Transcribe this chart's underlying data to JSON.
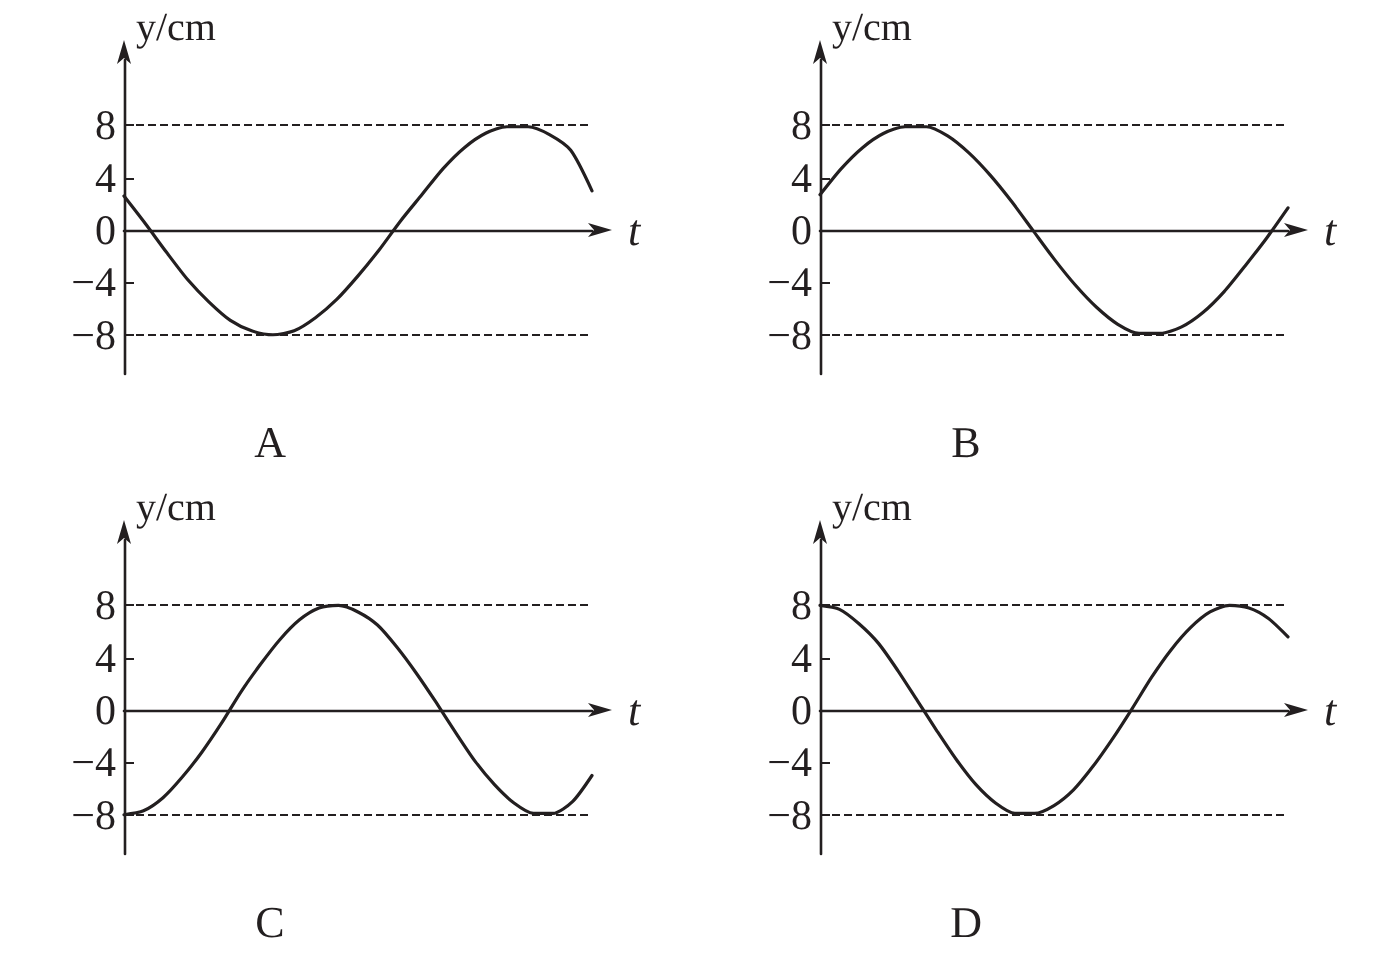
{
  "chart_data": [
    {
      "type": "line",
      "title": "A",
      "xlabel": "t",
      "ylabel": "y/cm",
      "categories": [
        null,
        null,
        null,
        null,
        null,
        null,
        null,
        null,
        null,
        null,
        null,
        null,
        null,
        null,
        null,
        null,
        null,
        null,
        null,
        null,
        null,
        null,
        null
      ],
      "series": [
        {
          "color": "#231f20",
          "values": [
            2.6,
            0.5,
            -1.7,
            -3.8,
            -5.5,
            -6.9,
            -7.7,
            -8.0,
            -7.7,
            -6.7,
            -5.3,
            -3.5,
            -1.5,
            0.7,
            2.7,
            4.7,
            6.3,
            7.4,
            7.9,
            7.9,
            7.3,
            6.1,
            3.0
          ]
        }
      ],
      "ylim": [
        -11,
        13
      ],
      "yticks": [
        8,
        4,
        0,
        -4,
        -8
      ],
      "ref_lines": [
        {
          "axis": "y",
          "value": 8,
          "line_style": "dashed"
        },
        {
          "axis": "y",
          "value": -8,
          "line_style": "dashed"
        }
      ],
      "tick_labels": "y",
      "grid": false,
      "marker": "none"
    },
    {
      "type": "line",
      "title": "B",
      "xlabel": "t",
      "ylabel": "y/cm",
      "categories": [
        null,
        null,
        null,
        null,
        null,
        null,
        null,
        null,
        null,
        null,
        null,
        null,
        null,
        null,
        null,
        null,
        null,
        null,
        null,
        null,
        null,
        null,
        null
      ],
      "series": [
        {
          "color": "#231f20",
          "values": [
            2.7,
            4.7,
            6.3,
            7.4,
            7.9,
            7.9,
            7.2,
            5.9,
            4.2,
            2.2,
            0,
            -2.2,
            -4.2,
            -5.9,
            -7.2,
            -7.9,
            -7.9,
            -7.4,
            -6.3,
            -4.7,
            -2.7,
            -0.6,
            1.7
          ]
        }
      ],
      "ylim": [
        -11,
        13
      ],
      "yticks": [
        8,
        4,
        0,
        -4,
        -8
      ],
      "ref_lines": [
        {
          "axis": "y",
          "value": 8,
          "line_style": "dashed"
        },
        {
          "axis": "y",
          "value": -8,
          "line_style": "dashed"
        }
      ],
      "tick_labels": "y",
      "grid": false,
      "marker": "none"
    },
    {
      "type": "line",
      "title": "C",
      "xlabel": "t",
      "ylabel": "y/cm",
      "categories": [
        null,
        null,
        null,
        null,
        null,
        null,
        null,
        null,
        null,
        null,
        null,
        null,
        null,
        null,
        null,
        null,
        null,
        null,
        null,
        null,
        null,
        null,
        null,
        null,
        null
      ],
      "series": [
        {
          "color": "#231f20",
          "values": [
            -8,
            -7.7,
            -6.7,
            -5.1,
            -3.2,
            -1.0,
            1.4,
            3.5,
            5.4,
            6.9,
            7.8,
            8.0,
            7.5,
            6.5,
            4.8,
            2.8,
            0.6,
            -1.7,
            -3.9,
            -5.7,
            -7.1,
            -7.9,
            -7.9,
            -7.0,
            -5.0
          ]
        }
      ],
      "ylim": [
        -11,
        13
      ],
      "yticks": [
        8,
        4,
        0,
        -4,
        -8
      ],
      "ref_lines": [
        {
          "axis": "y",
          "value": 8,
          "line_style": "dashed"
        },
        {
          "axis": "y",
          "value": -8,
          "line_style": "dashed"
        }
      ],
      "tick_labels": "y",
      "grid": false,
      "marker": "none"
    },
    {
      "type": "line",
      "title": "D",
      "xlabel": "t",
      "ylabel": "y/cm",
      "categories": [
        null,
        null,
        null,
        null,
        null,
        null,
        null,
        null,
        null,
        null,
        null,
        null,
        null,
        null,
        null,
        null,
        null,
        null,
        null,
        null,
        null,
        null,
        null,
        null,
        null
      ],
      "series": [
        {
          "color": "#231f20",
          "values": [
            8,
            7.7,
            6.6,
            5.1,
            3.0,
            0.7,
            -1.6,
            -3.8,
            -5.7,
            -7.1,
            -7.9,
            -7.9,
            -7.3,
            -6.1,
            -4.3,
            -2.2,
            0.1,
            2.5,
            4.6,
            6.3,
            7.5,
            8.0,
            7.8,
            7.0,
            5.6
          ]
        }
      ],
      "ylim": [
        -11,
        13
      ],
      "yticks": [
        8,
        4,
        0,
        -4,
        -8
      ],
      "ref_lines": [
        {
          "axis": "y",
          "value": 8,
          "line_style": "dashed"
        },
        {
          "axis": "y",
          "value": -8,
          "line_style": "dashed"
        }
      ],
      "tick_labels": "y",
      "grid": false,
      "marker": "none"
    }
  ]
}
